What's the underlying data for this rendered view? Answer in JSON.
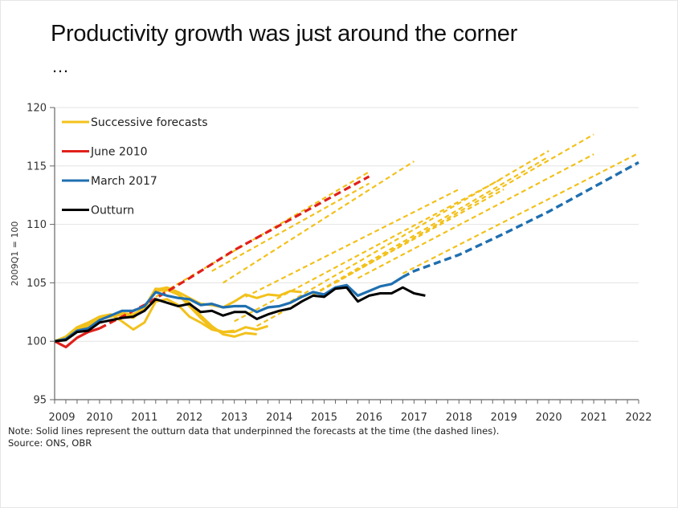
{
  "page": {
    "title": "Productivity growth was just around the corner",
    "title_continuation": "…",
    "note": "Note: Solid lines represent the outturn data that underpinned the forecasts at the time (the dashed lines).",
    "source": "Source: ONS, OBR"
  },
  "colors": {
    "forecasts": "#f2c11b",
    "june2010": "#e0201b",
    "march2017": "#1f6fb0",
    "outturn": "#000000",
    "grid": "#e3e3e3",
    "axis": "#666666"
  },
  "chart_data": {
    "type": "line",
    "title": "Productivity growth was just around the corner …",
    "xlabel": "",
    "ylabel": "2009Q1 = 100",
    "xlim": [
      2009,
      2022
    ],
    "ylim": [
      95,
      120
    ],
    "yticks": [
      95,
      100,
      105,
      110,
      115,
      120
    ],
    "xticks": [
      "2009",
      "2010",
      "2011",
      "2012",
      "2013",
      "2014",
      "2015",
      "2016",
      "2017",
      "2018",
      "2019",
      "2020",
      "2021",
      "2022"
    ],
    "grid": "horizontal",
    "legend_position": "top-left",
    "legend": [
      "Successive forecasts",
      "June 2010",
      "March 2017",
      "Outturn"
    ],
    "series": [
      {
        "name": "Outturn",
        "style": "solid",
        "color_key": "outturn",
        "x": [
          2009.0,
          2009.25,
          2009.5,
          2009.75,
          2010.0,
          2010.25,
          2010.5,
          2010.75,
          2011.0,
          2011.25,
          2011.5,
          2011.75,
          2012.0,
          2012.25,
          2012.5,
          2012.75,
          2013.0,
          2013.25,
          2013.5,
          2013.75,
          2014.0,
          2014.25,
          2014.5,
          2014.75,
          2015.0,
          2015.25,
          2015.5,
          2015.75,
          2016.0,
          2016.25,
          2016.5,
          2016.75,
          2017.0,
          2017.25
        ],
        "y": [
          100.0,
          100.1,
          100.8,
          100.9,
          101.6,
          101.8,
          102.0,
          102.1,
          102.6,
          103.6,
          103.3,
          103.0,
          103.2,
          102.5,
          102.6,
          102.2,
          102.5,
          102.5,
          101.9,
          102.3,
          102.6,
          102.8,
          103.4,
          103.9,
          103.8,
          104.5,
          104.6,
          103.4,
          103.9,
          104.1,
          104.1,
          104.6,
          104.1,
          103.9
        ]
      },
      {
        "name": "June 2010",
        "color_key": "june2010",
        "solid": {
          "x": [
            2009.0,
            2009.25,
            2009.5,
            2009.75,
            2010.0
          ],
          "y": [
            100.0,
            99.5,
            100.3,
            100.8,
            101.1
          ]
        },
        "dashed": {
          "x": [
            2010.0,
            2011.0,
            2012.0,
            2013.0,
            2014.0,
            2015.0,
            2016.0
          ],
          "y": [
            101.1,
            103.1,
            105.4,
            107.8,
            109.9,
            112.0,
            114.1
          ]
        }
      },
      {
        "name": "March 2017",
        "color_key": "march2017",
        "solid": {
          "x": [
            2009.0,
            2009.25,
            2009.5,
            2009.75,
            2010.0,
            2010.25,
            2010.5,
            2010.75,
            2011.0,
            2011.25,
            2011.5,
            2011.75,
            2012.0,
            2012.25,
            2012.5,
            2012.75,
            2013.0,
            2013.25,
            2013.5,
            2013.75,
            2014.0,
            2014.25,
            2014.5,
            2014.75,
            2015.0,
            2015.25,
            2015.5,
            2015.75,
            2016.0,
            2016.25,
            2016.5,
            2016.75
          ],
          "y": [
            100.0,
            100.2,
            100.9,
            101.1,
            101.8,
            102.2,
            102.6,
            102.6,
            103.0,
            104.2,
            103.9,
            103.7,
            103.6,
            103.1,
            103.2,
            102.9,
            103.0,
            103.0,
            102.5,
            102.9,
            103.0,
            103.3,
            103.8,
            104.2,
            104.0,
            104.6,
            104.8,
            103.9,
            104.3,
            104.7,
            104.9,
            105.5
          ]
        },
        "dashed": {
          "x": [
            2016.75,
            2017.0,
            2018.0,
            2019.0,
            2020.0,
            2021.0,
            2022.0
          ],
          "y": [
            105.5,
            106.0,
            107.4,
            109.2,
            111.1,
            113.2,
            115.3
          ]
        }
      },
      {
        "name": "Successive forecasts",
        "color_key": "forecasts",
        "note": "Approximate outturn-vintage (solid) and forecast (dashed) paths",
        "solid_vintages": [
          {
            "x": [
              2009.0,
              2009.25,
              2009.5,
              2009.75,
              2010.0,
              2010.25,
              2010.5,
              2010.75,
              2011.0,
              2011.25,
              2011.5,
              2011.75,
              2012.0,
              2012.25,
              2012.5,
              2012.75,
              2013.0
            ],
            "y": [
              100.0,
              100.4,
              101.2,
              101.6,
              102.1,
              102.3,
              101.7,
              101.0,
              101.6,
              103.4,
              103.6,
              103.1,
              102.1,
              101.6,
              101.0,
              100.8,
              100.9
            ]
          },
          {
            "x": [
              2009.0,
              2009.25,
              2009.5,
              2009.75,
              2010.0,
              2010.25,
              2010.5,
              2010.75,
              2011.0,
              2011.25,
              2011.5,
              2011.75,
              2012.0,
              2012.25,
              2012.5,
              2012.75,
              2013.0,
              2013.25,
              2013.5
            ],
            "y": [
              100.0,
              100.3,
              101.0,
              101.4,
              102.0,
              102.2,
              102.3,
              102.0,
              102.8,
              104.3,
              104.4,
              104.0,
              103.3,
              102.2,
              101.3,
              100.6,
              100.4,
              100.7,
              100.6
            ]
          },
          {
            "x": [
              2009.0,
              2009.25,
              2009.5,
              2009.75,
              2010.0,
              2010.25,
              2010.5,
              2010.75,
              2011.0,
              2011.25,
              2011.5,
              2011.75,
              2012.0,
              2012.25,
              2012.5,
              2012.75,
              2013.0,
              2013.25,
              2013.5,
              2013.75
            ],
            "y": [
              100.0,
              100.2,
              100.9,
              101.3,
              101.9,
              102.1,
              102.3,
              102.2,
              102.9,
              104.5,
              104.4,
              104.0,
              103.0,
              102.0,
              101.1,
              100.8,
              100.8,
              101.2,
              101.0,
              101.3
            ]
          },
          {
            "x": [
              2009.0,
              2009.25,
              2009.5,
              2009.75,
              2010.0,
              2010.25,
              2010.5,
              2010.75,
              2011.0,
              2011.25,
              2011.5,
              2011.75,
              2012.0,
              2012.25,
              2012.5,
              2012.75,
              2013.0,
              2013.25,
              2013.5,
              2013.75,
              2014.0,
              2014.25,
              2014.5
            ],
            "y": [
              100.0,
              100.3,
              101.0,
              101.4,
              101.9,
              102.2,
              102.4,
              102.3,
              102.8,
              104.4,
              104.6,
              104.2,
              103.7,
              103.2,
              103.1,
              102.9,
              103.4,
              104.0,
              103.7,
              104.0,
              103.9,
              104.3,
              104.2
            ]
          }
        ],
        "dashed_forecasts": [
          {
            "x": [
              2011.25,
              2016.0
            ],
            "y": [
              103.8,
              114.5
            ]
          },
          {
            "x": [
              2012.5,
              2016.0
            ],
            "y": [
              106.0,
              113.5
            ]
          },
          {
            "x": [
              2012.75,
              2017.0
            ],
            "y": [
              105.0,
              115.4
            ]
          },
          {
            "x": [
              2013.25,
              2018.0
            ],
            "y": [
              103.8,
              113.0
            ]
          },
          {
            "x": [
              2013.5,
              2019.0
            ],
            "y": [
              101.3,
              113.0
            ]
          },
          {
            "x": [
              2013.0,
              2019.0
            ],
            "y": [
              101.7,
              114.0
            ]
          },
          {
            "x": [
              2014.25,
              2020.0
            ],
            "y": [
              103.4,
              116.3
            ]
          },
          {
            "x": [
              2014.75,
              2020.0
            ],
            "y": [
              104.0,
              115.8
            ]
          },
          {
            "x": [
              2015.25,
              2021.0
            ],
            "y": [
              105.0,
              117.7
            ]
          },
          {
            "x": [
              2015.75,
              2021.0
            ],
            "y": [
              105.4,
              116.0
            ]
          },
          {
            "x": [
              2016.75,
              2022.0
            ],
            "y": [
              105.8,
              116.1
            ]
          }
        ]
      }
    ]
  }
}
